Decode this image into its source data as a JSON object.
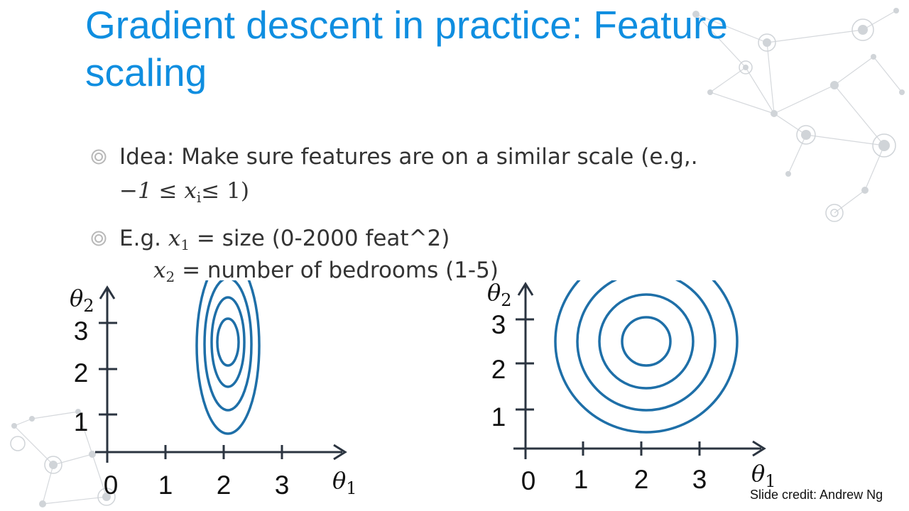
{
  "slide": {
    "title": "Gradient descent in practice: Feature scaling",
    "bullets": [
      {
        "text": "Idea: Make sure features are on a similar scale (e.g,.",
        "math_line": {
          "prefix": "−1 ≤ ",
          "var": "x",
          "sub": "i",
          "suffix": "≤ 1)"
        }
      },
      {
        "lead": "E.g. ",
        "var": "x",
        "sub": "1",
        "rest": " = size (0-2000 feat^2)"
      }
    ],
    "sub_line": {
      "var": "x",
      "sub": "2",
      "rest": " = number of bedrooms (1-5)"
    },
    "credit": "Slide credit: Andrew Ng",
    "colors": {
      "title": "#0f8ee0",
      "contour": "#1e6fa8",
      "axis": "#2b3440",
      "text": "#333333",
      "bullet_marker": "#b8b8b8"
    },
    "icons": {
      "bullet": "concentric-circle-bullet-icon",
      "decoration": "network-graph-decoration"
    }
  },
  "chart_data": [
    {
      "type": "contour",
      "name": "",
      "x_axis": {
        "symbol": "θ",
        "sub": "1",
        "ticks": [
          "0",
          "1",
          "2",
          "3"
        ]
      },
      "y_axis": {
        "symbol": "θ",
        "sub": "2",
        "ticks": [
          "1",
          "2",
          "3"
        ]
      },
      "center": [
        2,
        2.5
      ],
      "shape": "ellipse",
      "rings": 4
    },
    {
      "type": "contour",
      "name": "",
      "x_axis": {
        "symbol": "θ",
        "sub": "1",
        "ticks": [
          "0",
          "1",
          "2",
          "3"
        ]
      },
      "y_axis": {
        "symbol": "θ",
        "sub": "2",
        "ticks": [
          "1",
          "2",
          "3"
        ]
      },
      "center": [
        2,
        2.5
      ],
      "shape": "circle",
      "rings": 4
    }
  ]
}
